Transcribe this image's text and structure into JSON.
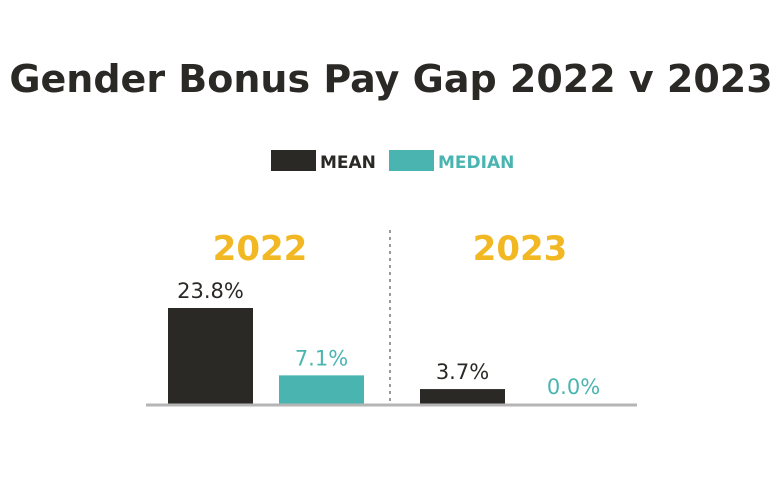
{
  "title": "Gender Bonus Pay Gap 2022 v 2023",
  "colors": {
    "mean": "#2b2926",
    "median": "#4ab5b0",
    "year": "#f2b824",
    "axis": "#b5b5b5"
  },
  "chart_data": {
    "type": "bar",
    "title": "Gender Bonus Pay Gap 2022 v 2023",
    "categories": [
      "2022",
      "2023"
    ],
    "series": [
      {
        "name": "MEAN",
        "values": [
          23.8,
          3.7
        ],
        "labels": [
          "23.8%",
          "3.7%"
        ]
      },
      {
        "name": "MEDIAN",
        "values": [
          7.1,
          0.0
        ],
        "labels": [
          "7.1%",
          "0.0%"
        ]
      }
    ],
    "ylim": [
      0,
      23.8
    ],
    "grid": false,
    "legend": "top-center"
  }
}
